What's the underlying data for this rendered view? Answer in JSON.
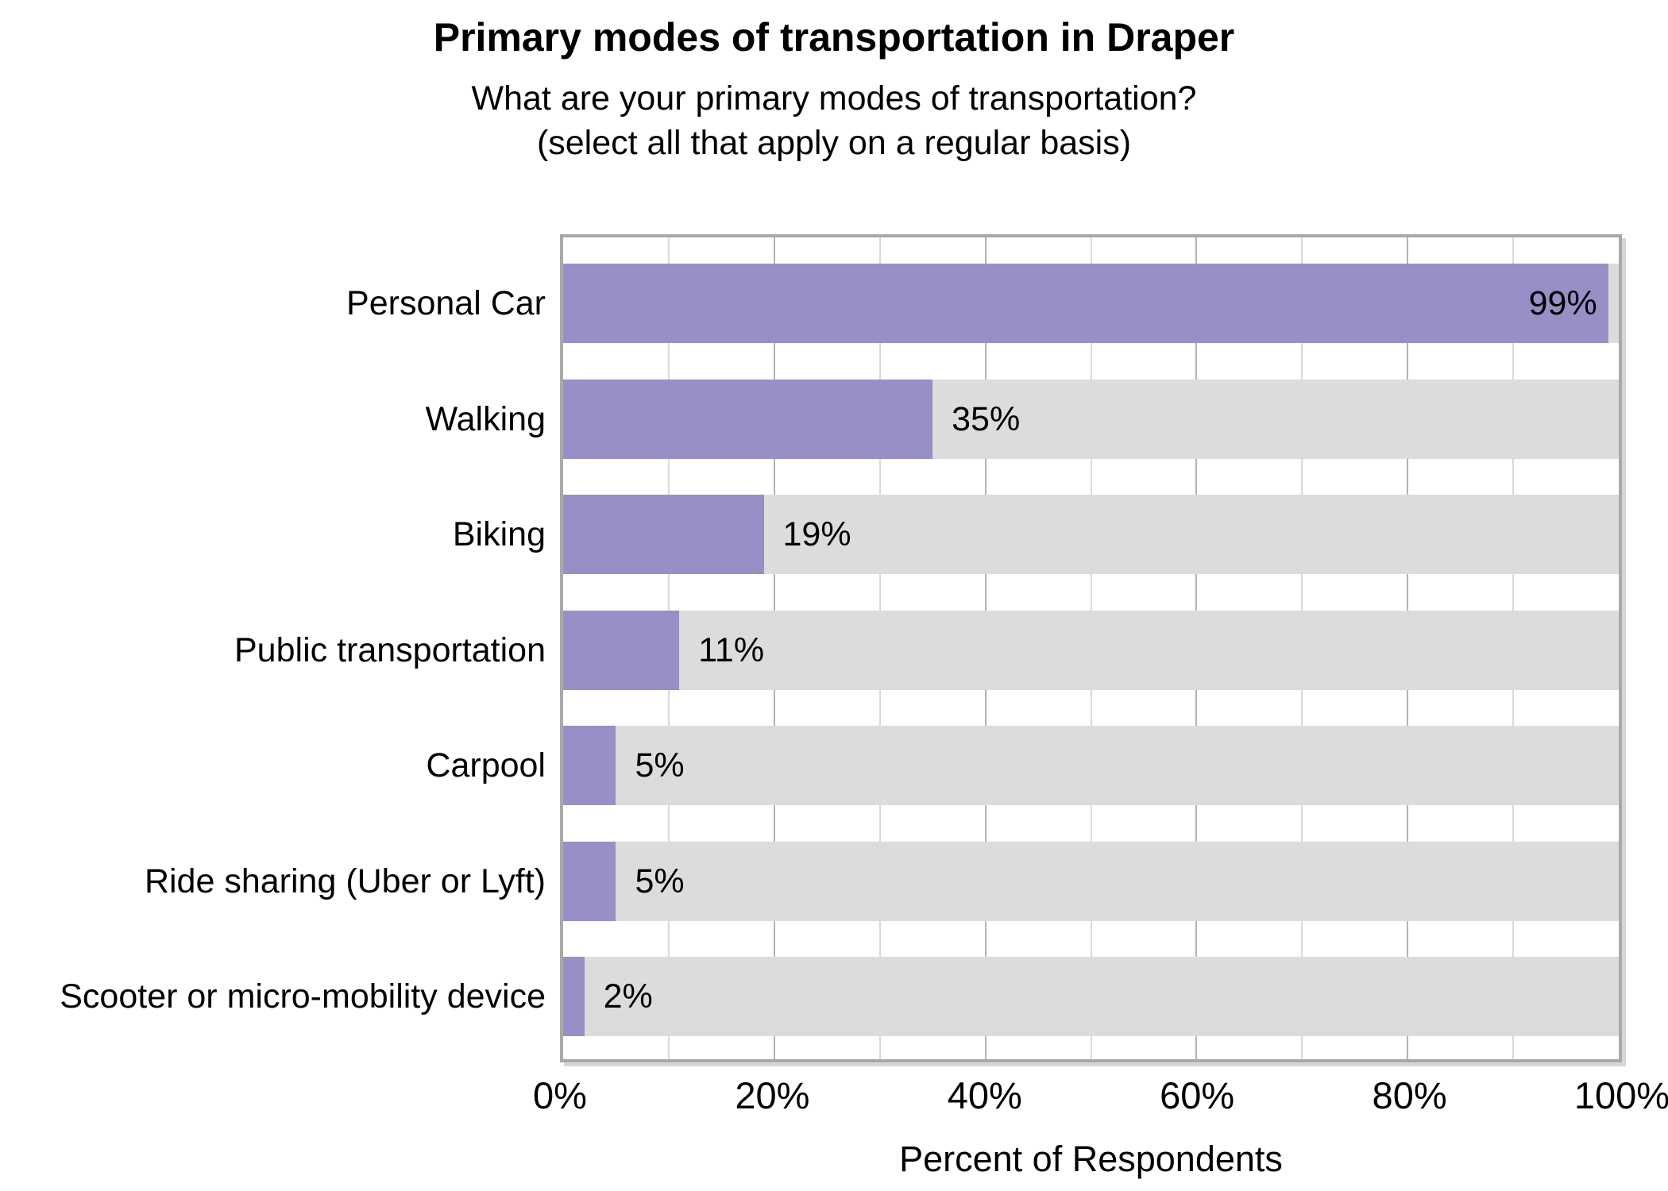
{
  "chart_data": {
    "type": "bar",
    "orientation": "horizontal",
    "title": "Primary modes of transportation in Draper",
    "subtitle_lines": [
      "What are your primary modes of transportation?",
      "(select all that apply on a regular basis)"
    ],
    "categories": [
      "Personal Car",
      "Walking",
      "Biking",
      "Public transportation",
      "Carpool",
      "Ride sharing (Uber or Lyft)",
      "Scooter or micro-mobility device"
    ],
    "values": [
      99,
      35,
      19,
      11,
      5,
      5,
      2
    ],
    "value_labels": [
      "99%",
      "35%",
      "19%",
      "11%",
      "5%",
      "5%",
      "2%"
    ],
    "xlabel": "Percent of Respondents",
    "xlim": [
      0,
      100
    ],
    "xticks": [
      {
        "value": 0,
        "label": "0%"
      },
      {
        "value": 20,
        "label": "20%"
      },
      {
        "value": 40,
        "label": "40%"
      },
      {
        "value": 60,
        "label": "60%"
      },
      {
        "value": 80,
        "label": "80%"
      },
      {
        "value": 100,
        "label": "100%"
      }
    ],
    "grid": {
      "minor_interval": 10,
      "major_interval": 20,
      "direction": "vertical"
    },
    "legend": "none",
    "colors": {
      "bar_fill": "#988fc6",
      "bar_track": "#dcdcdc",
      "grid_minor": "#d9d9d9",
      "grid_major": "#b3b3b3",
      "panel_border": "#a9a9a9",
      "panel_shadow": "#d6d6d6",
      "text": "#000000",
      "background": "#ffffff"
    }
  }
}
